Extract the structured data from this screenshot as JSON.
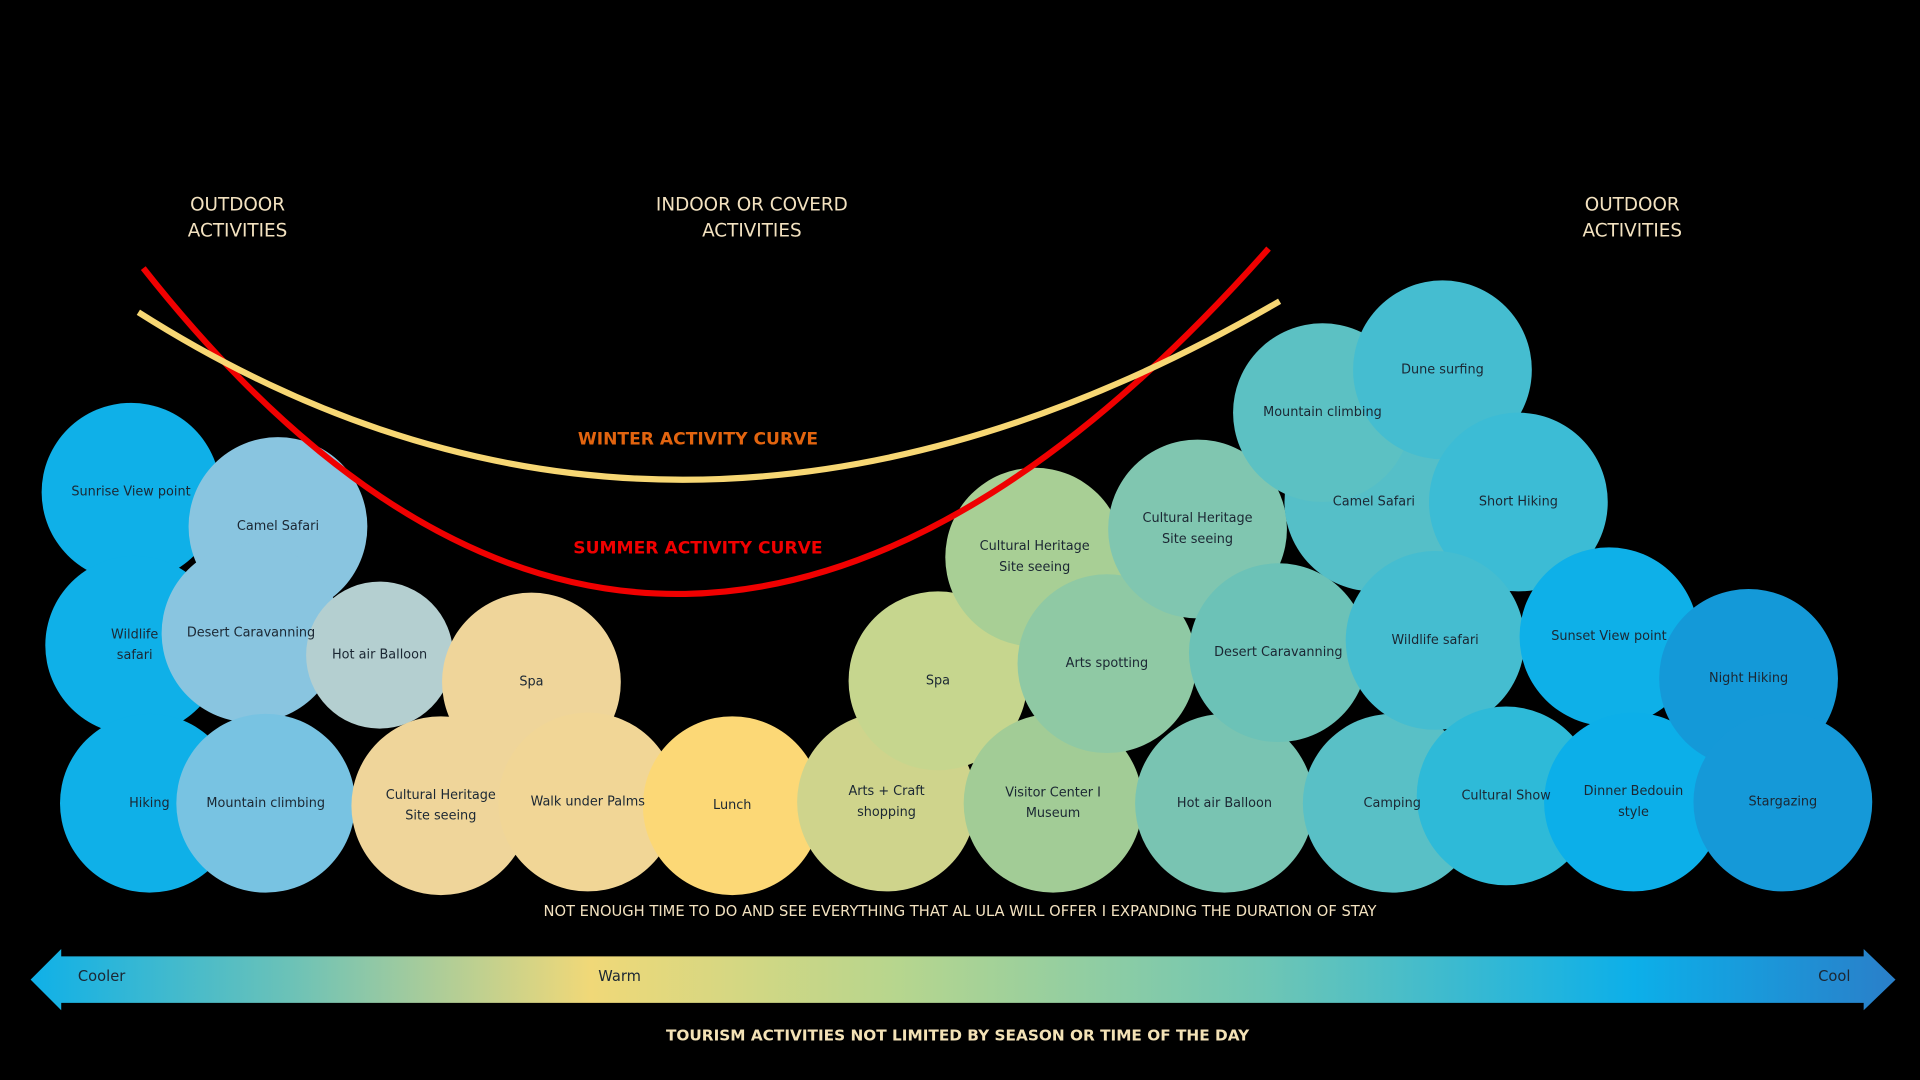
{
  "headings": [
    {
      "lines": [
        "OUTDOOR",
        "ACTIVITIES"
      ]
    },
    {
      "lines": [
        "INDOOR OR COVERD",
        "ACTIVITIES"
      ]
    },
    {
      "lines": [
        "OUTDOOR",
        "ACTIVITIES"
      ]
    }
  ],
  "curves": {
    "winter": "WINTER ACTIVITY CURVE",
    "summer": "SUMMER ACTIVITY CURVE"
  },
  "bubbles": [
    {
      "label": [
        "Sunrise View point"
      ]
    },
    {
      "label": [
        "Wildlife",
        "safari"
      ]
    },
    {
      "label": [
        "Hiking"
      ]
    },
    {
      "label": [
        "Camel Safari"
      ]
    },
    {
      "label": [
        "Desert Caravanning"
      ]
    },
    {
      "label": [
        "Mountain climbing"
      ]
    },
    {
      "label": [
        "Hot air Balloon"
      ]
    },
    {
      "label": [
        "Spa"
      ]
    },
    {
      "label": [
        "Cultural Heritage",
        "Site seeing"
      ]
    },
    {
      "label": [
        "Walk under Palms"
      ]
    },
    {
      "label": [
        "Lunch"
      ]
    },
    {
      "label": [
        "Arts + Craft",
        "shopping"
      ]
    },
    {
      "label": [
        "Spa"
      ]
    },
    {
      "label": [
        "Visitor Center I",
        "Museum"
      ]
    },
    {
      "label": [
        "Cultural Heritage",
        "Site seeing"
      ]
    },
    {
      "label": [
        "Arts spotting"
      ]
    },
    {
      "label": [
        "Hot air Balloon"
      ]
    },
    {
      "label": [
        "Cultural Heritage",
        "Site seeing"
      ]
    },
    {
      "label": [
        "Desert Caravanning"
      ]
    },
    {
      "label": [
        "Camping"
      ]
    },
    {
      "label": [
        "Camel Safari"
      ]
    },
    {
      "label": [
        "Mountain climbing"
      ]
    },
    {
      "label": [
        "Dune surfing"
      ]
    },
    {
      "label": [
        "Short Hiking"
      ]
    },
    {
      "label": [
        "Wildlife safari"
      ]
    },
    {
      "label": [
        "Cultural Show"
      ]
    },
    {
      "label": [
        "Sunset View point"
      ]
    },
    {
      "label": [
        "Dinner Bedouin",
        "style"
      ]
    },
    {
      "label": [
        "Night Hiking"
      ]
    },
    {
      "label": [
        "Stargazing"
      ]
    }
  ],
  "note": "NOT ENOUGH TIME TO DO AND SEE EVERYTHING THAT AL ULA WILL OFFER I EXPANDING THE DURATION OF STAY",
  "scale": {
    "left": "Cooler",
    "middle": "Warm",
    "right": "Cool"
  },
  "footer": "TOURISM ACTIVITIES NOT LIMITED BY SEASON OR TIME OF THE DAY"
}
